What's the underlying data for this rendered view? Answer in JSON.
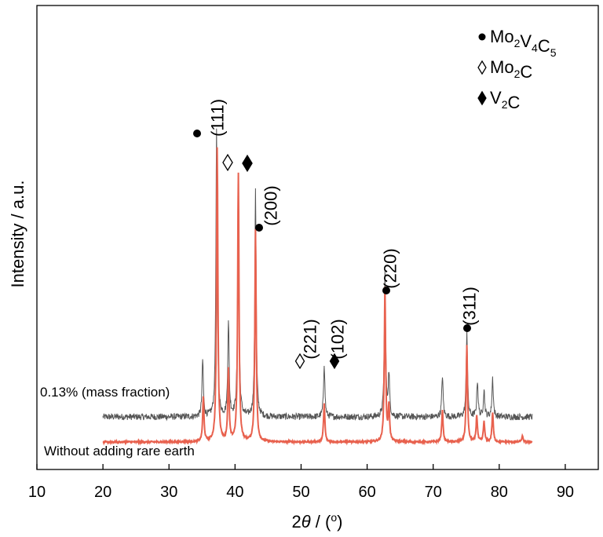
{
  "chart_data": {
    "type": "line",
    "xlabel_prefix": "2",
    "xlabel_theta": "θ",
    "xlabel_suffix": " / (",
    "xlabel_degree": "o",
    "xlabel_close": ")",
    "ylabel": "Intensity / a.u.",
    "xlim": [
      10,
      95
    ],
    "xticks": [
      10,
      20,
      30,
      40,
      50,
      60,
      70,
      80,
      90
    ],
    "grid": false,
    "legend_position": "top-right",
    "legend": [
      {
        "marker": "filled-circle",
        "formula": [
          [
            "Mo",
            "2"
          ],
          [
            "V",
            "4"
          ],
          [
            "C",
            "5"
          ]
        ]
      },
      {
        "marker": "open-diamond",
        "formula": [
          [
            "Mo",
            "2"
          ],
          [
            "C",
            ""
          ]
        ]
      },
      {
        "marker": "filled-diamond",
        "formula": [
          [
            "V",
            "2"
          ],
          [
            "C",
            ""
          ]
        ]
      }
    ],
    "series": [
      {
        "name": "0.13% (mass fraction)",
        "color": "#555555",
        "peaks": [
          {
            "x": 35.1,
            "h": 0.19
          },
          {
            "x": 37.2,
            "h": 0.96
          },
          {
            "x": 39.0,
            "h": 0.32
          },
          {
            "x": 40.5,
            "h": 0.81
          },
          {
            "x": 43.1,
            "h": 0.77
          },
          {
            "x": 53.5,
            "h": 0.18
          },
          {
            "x": 62.7,
            "h": 0.48
          },
          {
            "x": 63.3,
            "h": 0.14
          },
          {
            "x": 71.4,
            "h": 0.14
          },
          {
            "x": 75.1,
            "h": 0.29
          },
          {
            "x": 76.7,
            "h": 0.12
          },
          {
            "x": 77.7,
            "h": 0.09
          },
          {
            "x": 79.0,
            "h": 0.13
          }
        ]
      },
      {
        "name": "Without adding rare earth",
        "color": "#e8614e",
        "peaks": [
          {
            "x": 35.2,
            "h": 0.15
          },
          {
            "x": 37.3,
            "h": 1.0
          },
          {
            "x": 39.0,
            "h": 0.24
          },
          {
            "x": 40.5,
            "h": 0.91
          },
          {
            "x": 43.1,
            "h": 0.72
          },
          {
            "x": 53.5,
            "h": 0.13
          },
          {
            "x": 62.7,
            "h": 0.52
          },
          {
            "x": 63.3,
            "h": 0.12
          },
          {
            "x": 71.4,
            "h": 0.11
          },
          {
            "x": 75.1,
            "h": 0.33
          },
          {
            "x": 76.6,
            "h": 0.09
          },
          {
            "x": 77.7,
            "h": 0.07
          },
          {
            "x": 79.0,
            "h": 0.1
          },
          {
            "x": 83.5,
            "h": 0.02
          }
        ]
      }
    ],
    "peak_labels": [
      {
        "text": "(111)",
        "x": 37.2,
        "marker": "filled-circle"
      },
      {
        "text": "(200)",
        "x": 43.7,
        "marker": "filled-circle"
      },
      {
        "text": "(221)",
        "x": 52.3,
        "marker": "open-diamond"
      },
      {
        "text": "(102)",
        "x": 55.0,
        "marker": "filled-diamond"
      },
      {
        "text": "(220)",
        "x": 63.0,
        "marker": "filled-circle"
      },
      {
        "text": "(311)",
        "x": 75.1,
        "marker": "filled-circle"
      }
    ],
    "peak_markers": [
      {
        "x": 38.9,
        "marker": "open-diamond"
      },
      {
        "x": 41.8,
        "marker": "filled-diamond"
      }
    ]
  }
}
